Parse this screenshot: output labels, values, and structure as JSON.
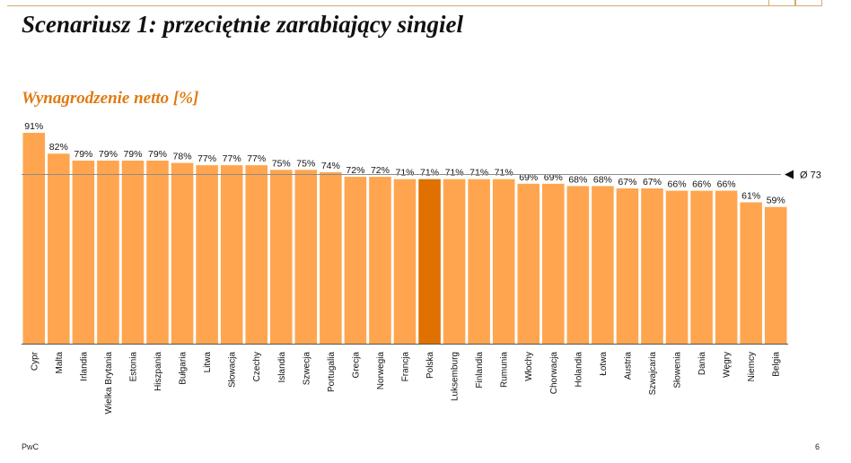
{
  "page": {
    "title": "Scenariusz 1: przeciętnie zarabiający singiel",
    "footer_left": "PwC",
    "footer_right": "6"
  },
  "colors": {
    "bar": "#FFA54F",
    "highlight": "#E07000",
    "subtitle": "#E07A10",
    "average_line": "#8C8C8C"
  },
  "chart_data": {
    "type": "bar",
    "title": "Wynagrodzenie netto [%]",
    "categories": [
      "Cypr",
      "Malta",
      "Irlandia",
      "Wielka Brytania",
      "Estonia",
      "Hiszpania",
      "Bułgaria",
      "Litwa",
      "Słowacja",
      "Czechy",
      "Islandia",
      "Szwecja",
      "Portugalia",
      "Grecja",
      "Norwegia",
      "Francja",
      "Polska",
      "Luksemburg",
      "Finlandia",
      "Rumunia",
      "Włochy",
      "Chorwacja",
      "Holandia",
      "Łotwa",
      "Austria",
      "Szwajcaria",
      "Słowenia",
      "Dania",
      "Węgry",
      "Niemcy",
      "Belgia"
    ],
    "values": [
      91,
      82,
      79,
      79,
      79,
      79,
      78,
      77,
      77,
      77,
      75,
      75,
      74,
      72,
      72,
      71,
      71,
      71,
      71,
      71,
      69,
      69,
      68,
      68,
      67,
      67,
      66,
      66,
      66,
      61,
      59
    ],
    "value_labels": [
      "91%",
      "82%",
      "79%",
      "79%",
      "79%",
      "79%",
      "78%",
      "77%",
      "77%",
      "77%",
      "75%",
      "75%",
      "74%",
      "72%",
      "72%",
      "71%",
      "71%",
      "71%",
      "71%",
      "71%",
      "69%",
      "69%",
      "68%",
      "68%",
      "67%",
      "67%",
      "66%",
      "66%",
      "66%",
      "61%",
      "59%"
    ],
    "highlight": "Polska",
    "average": 73,
    "average_label": "Ø 73",
    "ylim": [
      0,
      91
    ],
    "xlabel": "",
    "ylabel": "",
    "grid": false
  }
}
